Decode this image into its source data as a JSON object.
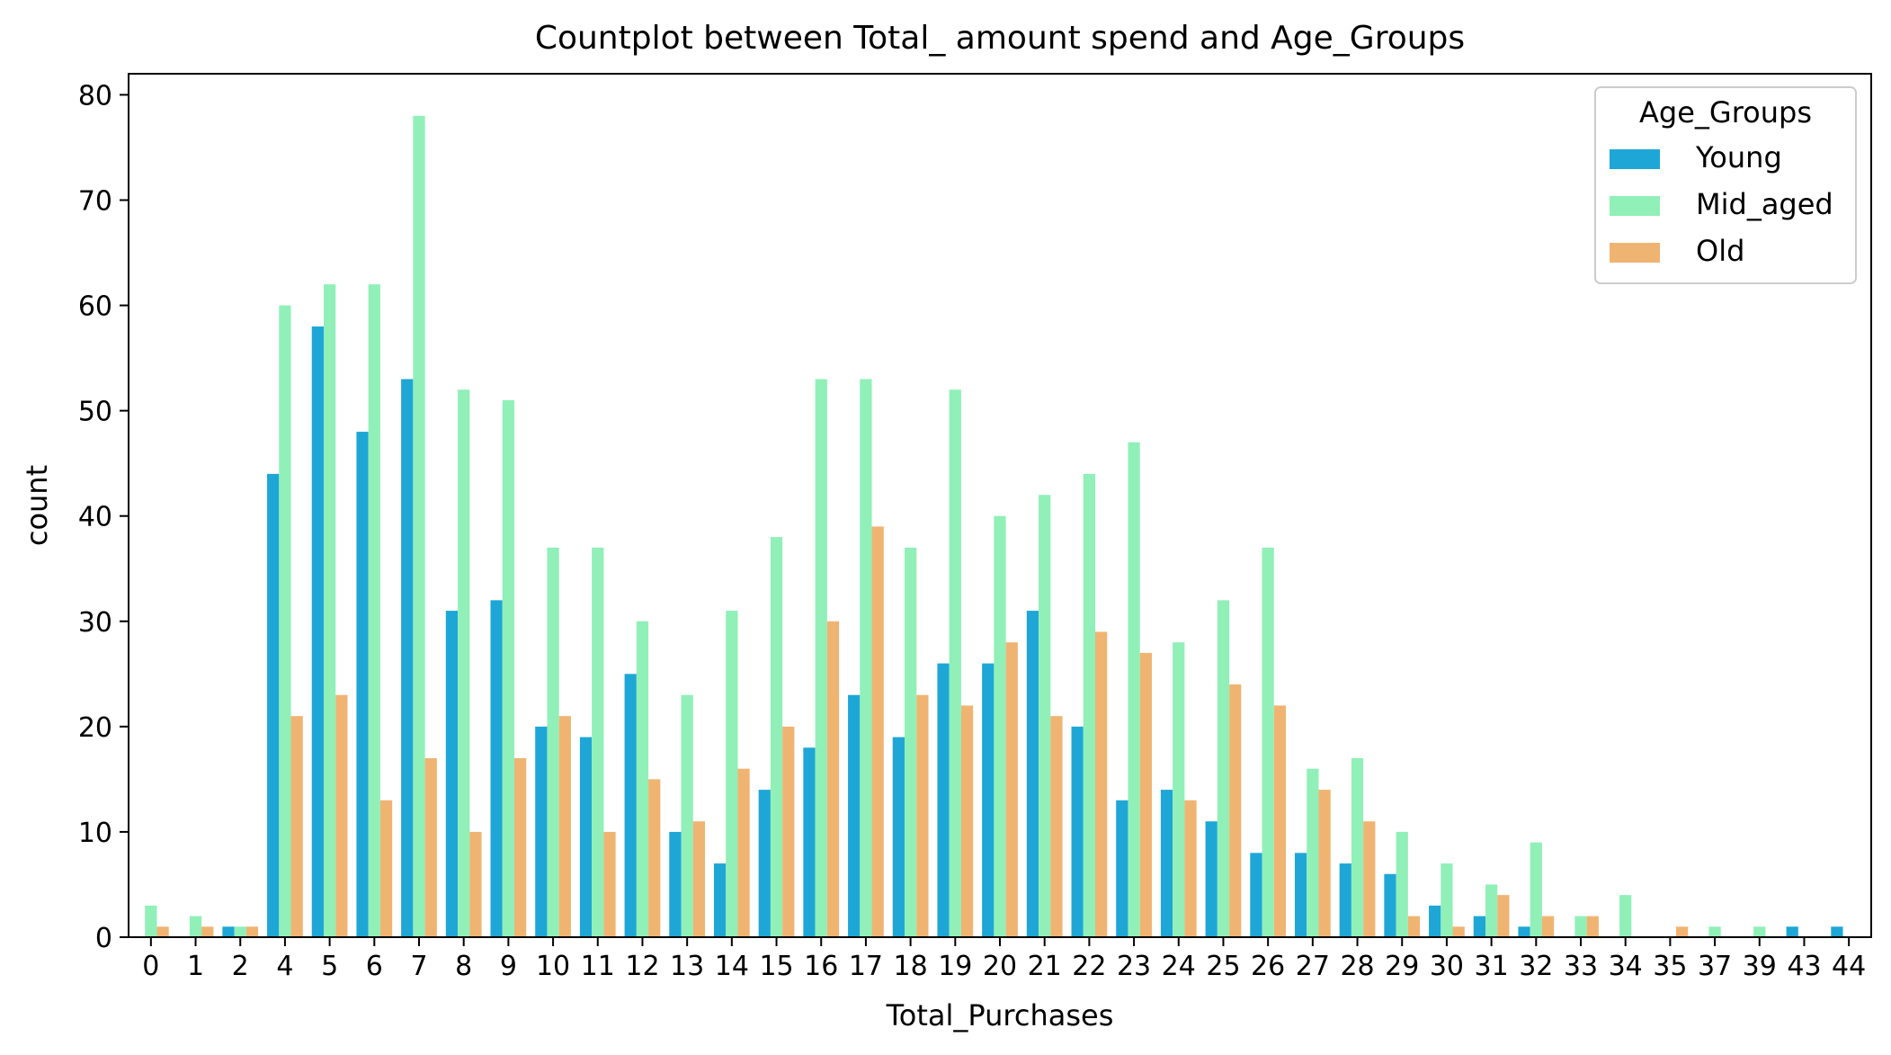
{
  "chart_data": {
    "type": "bar",
    "title": "Countplot between Total_ amount spend and Age_Groups",
    "xlabel": "Total_Purchases",
    "ylabel": "count",
    "ylim": [
      0,
      82
    ],
    "yticks": [
      0,
      10,
      20,
      30,
      40,
      50,
      60,
      70,
      80
    ],
    "grid": false,
    "legend_title": "Age_Groups",
    "legend_position": "top-right",
    "categories": [
      "0",
      "1",
      "2",
      "4",
      "5",
      "6",
      "7",
      "8",
      "9",
      "10",
      "11",
      "12",
      "13",
      "14",
      "15",
      "16",
      "17",
      "18",
      "19",
      "20",
      "21",
      "22",
      "23",
      "24",
      "25",
      "26",
      "27",
      "28",
      "29",
      "30",
      "31",
      "32",
      "33",
      "34",
      "35",
      "37",
      "39",
      "43",
      "44"
    ],
    "series": [
      {
        "name": "Young",
        "color": "#1ea7d6",
        "values": [
          0,
          0,
          1,
          44,
          58,
          48,
          53,
          31,
          32,
          20,
          19,
          25,
          10,
          7,
          14,
          18,
          23,
          19,
          26,
          26,
          31,
          20,
          13,
          14,
          11,
          8,
          8,
          7,
          6,
          3,
          2,
          1,
          0,
          0,
          0,
          0,
          0,
          1,
          1
        ]
      },
      {
        "name": "Mid_aged",
        "color": "#90f0b8",
        "values": [
          3,
          2,
          1,
          60,
          62,
          62,
          78,
          52,
          51,
          37,
          37,
          30,
          23,
          31,
          38,
          53,
          53,
          37,
          52,
          40,
          42,
          44,
          47,
          28,
          32,
          37,
          16,
          17,
          10,
          7,
          5,
          9,
          2,
          4,
          0,
          1,
          1,
          0,
          0
        ]
      },
      {
        "name": "Old",
        "color": "#f0b472",
        "values": [
          1,
          1,
          1,
          21,
          23,
          13,
          17,
          10,
          17,
          21,
          10,
          15,
          11,
          16,
          20,
          30,
          39,
          23,
          22,
          28,
          21,
          29,
          27,
          13,
          24,
          22,
          14,
          11,
          2,
          1,
          4,
          2,
          2,
          0,
          1,
          0,
          0,
          0,
          0
        ]
      }
    ]
  }
}
